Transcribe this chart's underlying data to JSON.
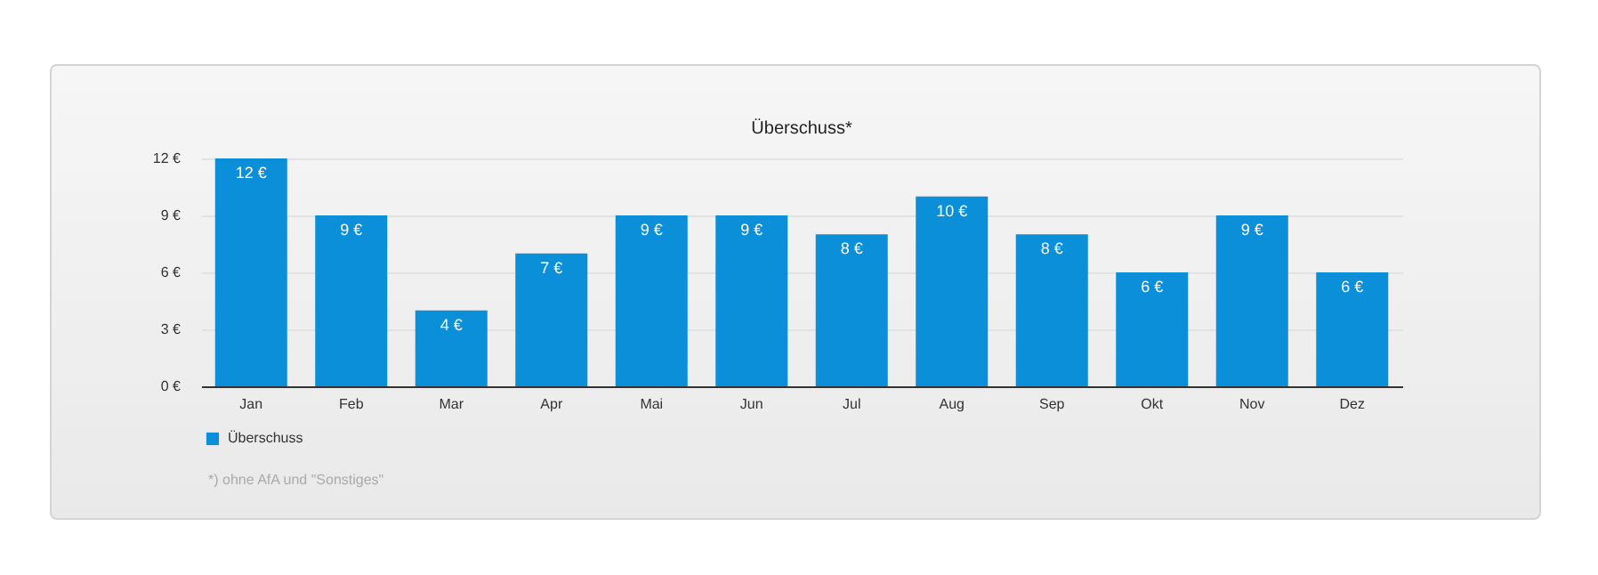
{
  "chart_data": {
    "type": "bar",
    "title": "Überschuss*",
    "categories": [
      "Jan",
      "Feb",
      "Mar",
      "Apr",
      "Mai",
      "Jun",
      "Jul",
      "Aug",
      "Sep",
      "Okt",
      "Nov",
      "Dez"
    ],
    "series": [
      {
        "name": "Überschuss",
        "color": "#0a8fd8",
        "values": [
          12,
          9,
          4,
          7,
          9,
          9,
          8,
          10,
          8,
          6,
          9,
          6
        ],
        "value_labels": [
          "12 €",
          "9 €",
          "4 €",
          "7 €",
          "9 €",
          "9 €",
          "8 €",
          "10 €",
          "8 €",
          "6 €",
          "9 €",
          "6 €"
        ]
      }
    ],
    "ylim": [
      0,
      12
    ],
    "yticks": [
      {
        "value": 0,
        "label": "0 €"
      },
      {
        "value": 3,
        "label": "3 €"
      },
      {
        "value": 6,
        "label": "6 €"
      },
      {
        "value": 9,
        "label": "9 €"
      },
      {
        "value": 12,
        "label": "12 €"
      }
    ],
    "grid": "y",
    "legend": "bottom left",
    "annotations": [
      "*) ohne AfA und \"Sonstiges\""
    ]
  }
}
